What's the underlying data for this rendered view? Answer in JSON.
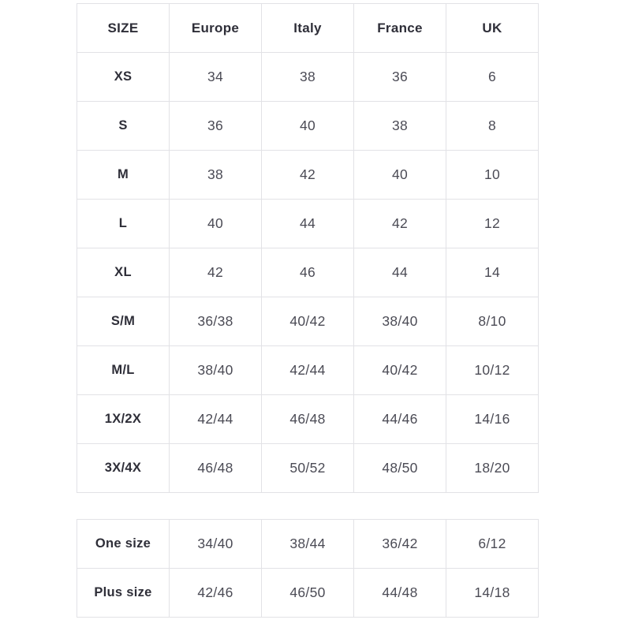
{
  "colors": {
    "background": "#ffffff",
    "border": "#e2e2e6",
    "heading_text": "#2e2e38",
    "value_text": "#4b4b55"
  },
  "size_chart": {
    "headers": [
      "SIZE",
      "Europe",
      "Italy",
      "France",
      "UK"
    ],
    "rows": [
      {
        "label": "XS",
        "values": [
          "34",
          "38",
          "36",
          "6"
        ]
      },
      {
        "label": "S",
        "values": [
          "36",
          "40",
          "38",
          "8"
        ]
      },
      {
        "label": "M",
        "values": [
          "38",
          "42",
          "40",
          "10"
        ]
      },
      {
        "label": "L",
        "values": [
          "40",
          "44",
          "42",
          "12"
        ]
      },
      {
        "label": "XL",
        "values": [
          "42",
          "46",
          "44",
          "14"
        ]
      },
      {
        "label": "S/M",
        "values": [
          "36/38",
          "40/42",
          "38/40",
          "8/10"
        ]
      },
      {
        "label": "M/L",
        "values": [
          "38/40",
          "42/44",
          "40/42",
          "10/12"
        ]
      },
      {
        "label": "1X/2X",
        "values": [
          "42/44",
          "46/48",
          "44/46",
          "14/16"
        ]
      },
      {
        "label": "3X/4X",
        "values": [
          "46/48",
          "50/52",
          "48/50",
          "18/20"
        ]
      }
    ]
  },
  "special_sizes": {
    "rows": [
      {
        "label": "One size",
        "values": [
          "34/40",
          "38/44",
          "36/42",
          "6/12"
        ]
      },
      {
        "label": "Plus size",
        "values": [
          "42/46",
          "46/50",
          "44/48",
          "14/18"
        ]
      }
    ]
  }
}
